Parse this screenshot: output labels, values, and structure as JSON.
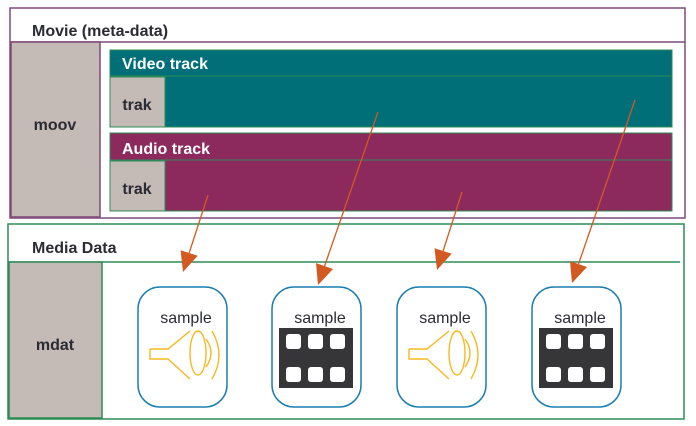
{
  "movie": {
    "title": "Movie (meta-data)",
    "box_label": "moov",
    "video_track": {
      "title": "Video track",
      "box_label": "trak"
    },
    "audio_track": {
      "title": "Audio track",
      "box_label": "trak"
    }
  },
  "media": {
    "title": "Media Data",
    "box_label": "mdat",
    "samples": [
      {
        "label": "sample",
        "kind": "audio"
      },
      {
        "label": "sample",
        "kind": "video"
      },
      {
        "label": "sample",
        "kind": "audio"
      },
      {
        "label": "sample",
        "kind": "video"
      }
    ]
  },
  "colors": {
    "movie_border": "#7e4a78",
    "media_border": "#2e8b57",
    "box_gray": "#c4bab6",
    "video_track": "#006f78",
    "audio_track": "#8c2a5e",
    "arrow": "#d2591f",
    "sample_border": "#1a7fb0",
    "speaker": "#f5b820",
    "film": "#363538"
  }
}
